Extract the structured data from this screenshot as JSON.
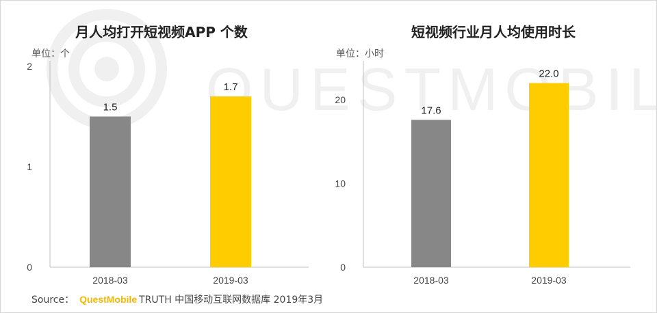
{
  "watermark": {
    "text": "QUESTMOBILE",
    "color": "#f0f0f0"
  },
  "chart_data": [
    {
      "type": "bar",
      "title": "月人均打开短视频APP 个数",
      "unit_label": "单位：个",
      "categories": [
        "2018-03",
        "2019-03"
      ],
      "values": [
        1.5,
        1.7
      ],
      "data_labels": [
        "1.5",
        "1.7"
      ],
      "colors": [
        "#878787",
        "#ffcc00"
      ],
      "ylim": [
        0,
        2
      ],
      "yticks": [
        0,
        1,
        2
      ],
      "grid": false
    },
    {
      "type": "bar",
      "title": "短视频行业月人均使用时长",
      "unit_label": "单位：小时",
      "categories": [
        "2018-03",
        "2019-03"
      ],
      "values": [
        17.6,
        22.0
      ],
      "data_labels": [
        "17.6",
        "22.0"
      ],
      "colors": [
        "#878787",
        "#ffcc00"
      ],
      "ylim": [
        0,
        24
      ],
      "yticks": [
        0,
        10,
        20
      ],
      "grid": false
    }
  ],
  "source": {
    "prefix": "Source：",
    "brand": "QuestMobile",
    "suffix": "TRUTH 中国移动互联网数据库 2019年3月"
  }
}
